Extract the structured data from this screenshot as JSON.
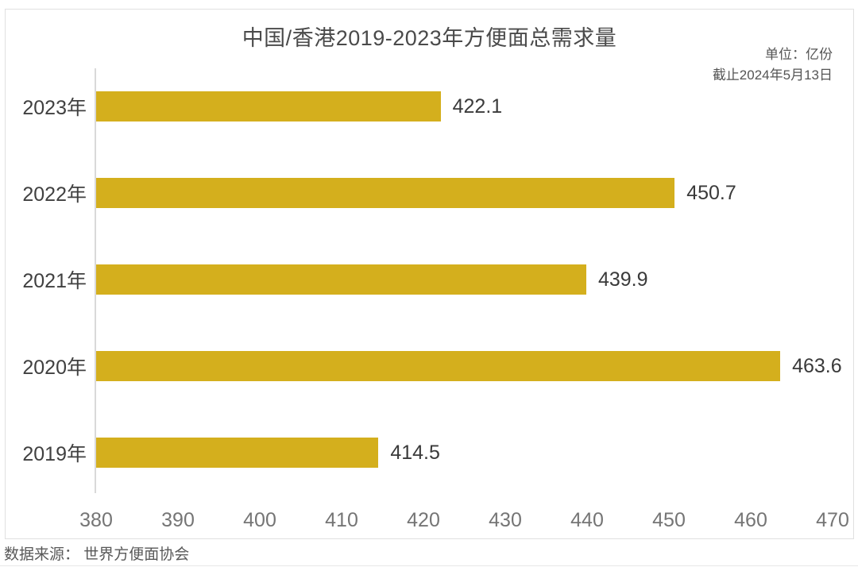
{
  "title": "中国/香港2019-2023年方便面总需求量",
  "meta": {
    "unit_label": "单位：亿份",
    "as_of_label": "截止2024年5月13日"
  },
  "source_label": "数据来源： 世界方便面协会",
  "colors": {
    "bar": "#d4af1d",
    "title_text": "#4a4a4a",
    "value_text": "#3a3a3a",
    "tick_text": "#757575",
    "frame_border": "#e0e0e0",
    "axis_line": "#d9d9d9"
  },
  "chart_data": {
    "type": "bar",
    "orientation": "horizontal",
    "title": "中国/香港2019-2023年方便面总需求量",
    "unit": "亿份",
    "as_of": "截止2024年5月13日",
    "source": "世界方便面协会",
    "categories": [
      "2023年",
      "2022年",
      "2021年",
      "2020年",
      "2019年"
    ],
    "values": [
      422.1,
      450.7,
      439.9,
      463.6,
      414.5
    ],
    "value_labels": [
      "422.1",
      "450.7",
      "439.9",
      "463.6",
      "414.5"
    ],
    "xlim": [
      380,
      470
    ],
    "xticks": [
      "380",
      "390",
      "400",
      "410",
      "420",
      "430",
      "440",
      "450",
      "460",
      "470"
    ],
    "grid": false,
    "legend": false,
    "bar_color": "#d4af1d"
  }
}
